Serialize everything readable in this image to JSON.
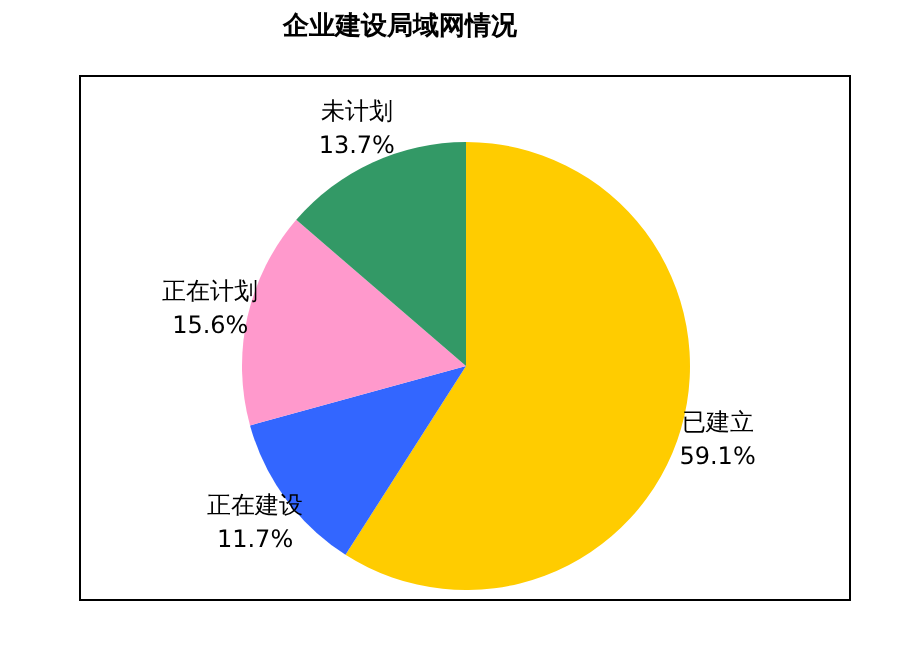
{
  "chart_data": {
    "type": "pie",
    "title": "企业建设局域网情况",
    "categories": [
      "已建立",
      "正在建设",
      "正在计划",
      "未计划"
    ],
    "values": [
      59.1,
      11.7,
      15.6,
      13.7
    ],
    "colors": [
      "#ffcc00",
      "#3366ff",
      "#ff99cc",
      "#339966"
    ],
    "value_labels": [
      "59.1%",
      "11.7%",
      "15.6%",
      "13.7%"
    ]
  }
}
